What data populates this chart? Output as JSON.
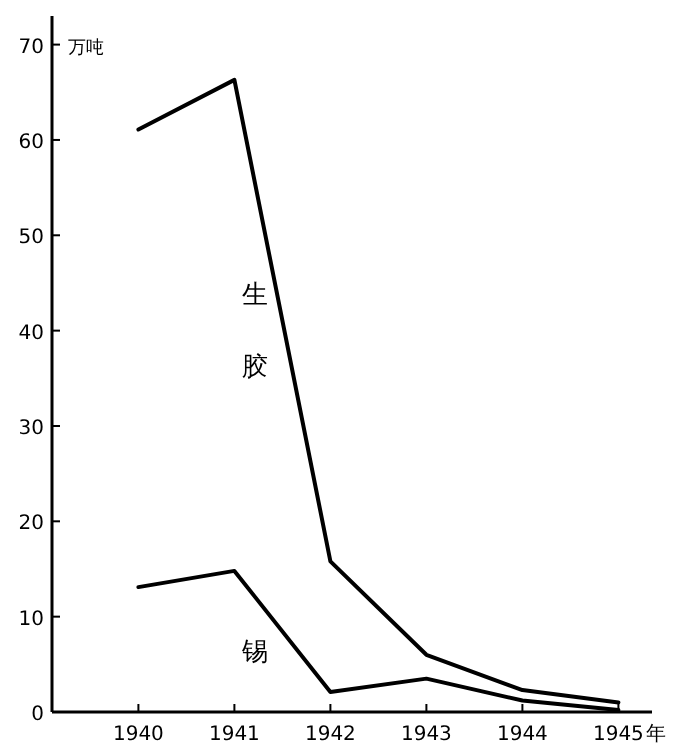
{
  "chart_data": {
    "type": "line",
    "ylabel": "万吨",
    "xlabel": "年",
    "x": [
      1940,
      1941,
      1942,
      1943,
      1944,
      1945
    ],
    "series": [
      {
        "name": "生胶",
        "color": "#000000",
        "values": [
          61.1,
          66.3,
          15.8,
          6,
          2.3,
          1
        ]
      },
      {
        "name": "锡",
        "color": "#000000",
        "values": [
          13.1,
          14.8,
          2.1,
          3.5,
          1.2,
          0.2
        ]
      }
    ],
    "xlim": [
      1939.1,
      1945.35
    ],
    "ylim": [
      0,
      73
    ],
    "xticks": [
      1940,
      1941,
      1942,
      1943,
      1944,
      1945
    ],
    "yticks": [
      0,
      10,
      20,
      30,
      40,
      50,
      60,
      70
    ]
  }
}
